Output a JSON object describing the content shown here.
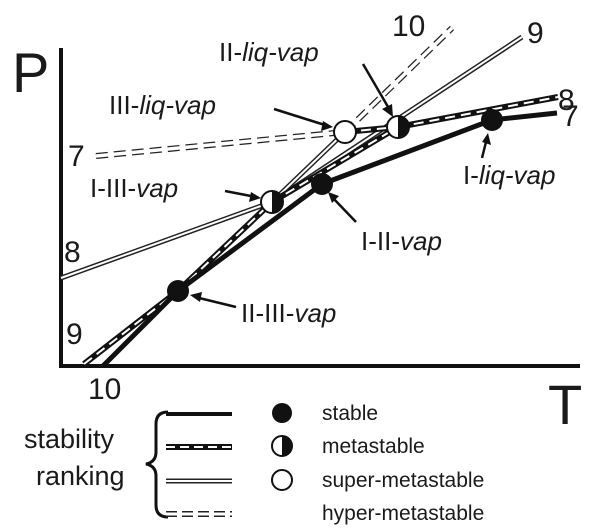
{
  "axes": {
    "y": "P",
    "x": "T"
  },
  "lines": {
    "line_7": "7",
    "line_8": "8",
    "line_9": "9",
    "line_10": "10"
  },
  "triple_points": [
    {
      "prefix": "I-",
      "italic": "liq-vap",
      "stability": "stable"
    },
    {
      "prefix": "II-",
      "italic": "liq-vap",
      "stability": "metastable"
    },
    {
      "prefix": "III-",
      "italic": "liq-vap",
      "stability": "super-metastable"
    },
    {
      "prefix": "I-III-",
      "italic": "vap",
      "stability": "metastable"
    },
    {
      "prefix": "I-II-",
      "italic": "vap",
      "stability": "stable"
    },
    {
      "prefix": "II-III-",
      "italic": "vap",
      "stability": "stable"
    }
  ],
  "legend": {
    "heading_line1": "stability",
    "heading_line2": "ranking",
    "items": [
      {
        "label": "stable"
      },
      {
        "label": "metastable"
      },
      {
        "label": "super-metastable"
      },
      {
        "label": "hyper-metastable"
      }
    ]
  }
}
